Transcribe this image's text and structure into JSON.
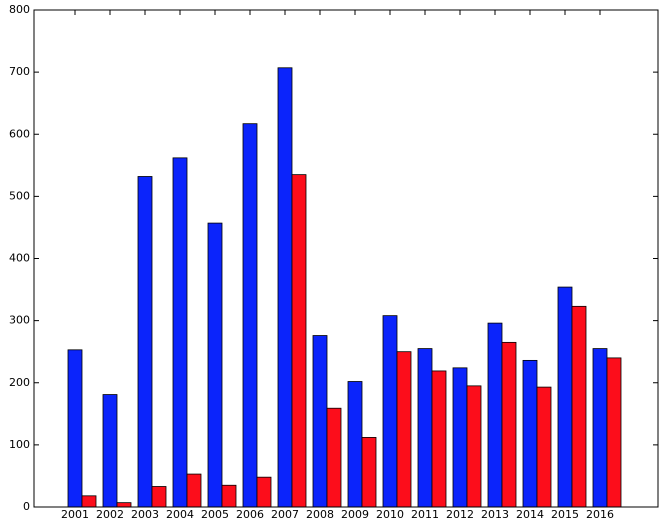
{
  "chart_data": {
    "type": "bar",
    "categories": [
      "2001",
      "2002",
      "2003",
      "2004",
      "2005",
      "2006",
      "2007",
      "2008",
      "2009",
      "2010",
      "2011",
      "2012",
      "2013",
      "2014",
      "2015",
      "2016"
    ],
    "series": [
      {
        "color": "#0b24fb",
        "values": [
          253,
          181,
          532,
          562,
          457,
          617,
          707,
          276,
          202,
          308,
          255,
          224,
          296,
          236,
          354,
          255
        ]
      },
      {
        "color": "#fc0d1b",
        "values": [
          18,
          7,
          33,
          53,
          35,
          48,
          535,
          159,
          112,
          250,
          219,
          195,
          265,
          193,
          323,
          240
        ]
      }
    ],
    "ylim": [
      0,
      800
    ],
    "yticks": [
      0,
      100,
      200,
      300,
      400,
      500,
      600,
      700,
      800
    ]
  }
}
